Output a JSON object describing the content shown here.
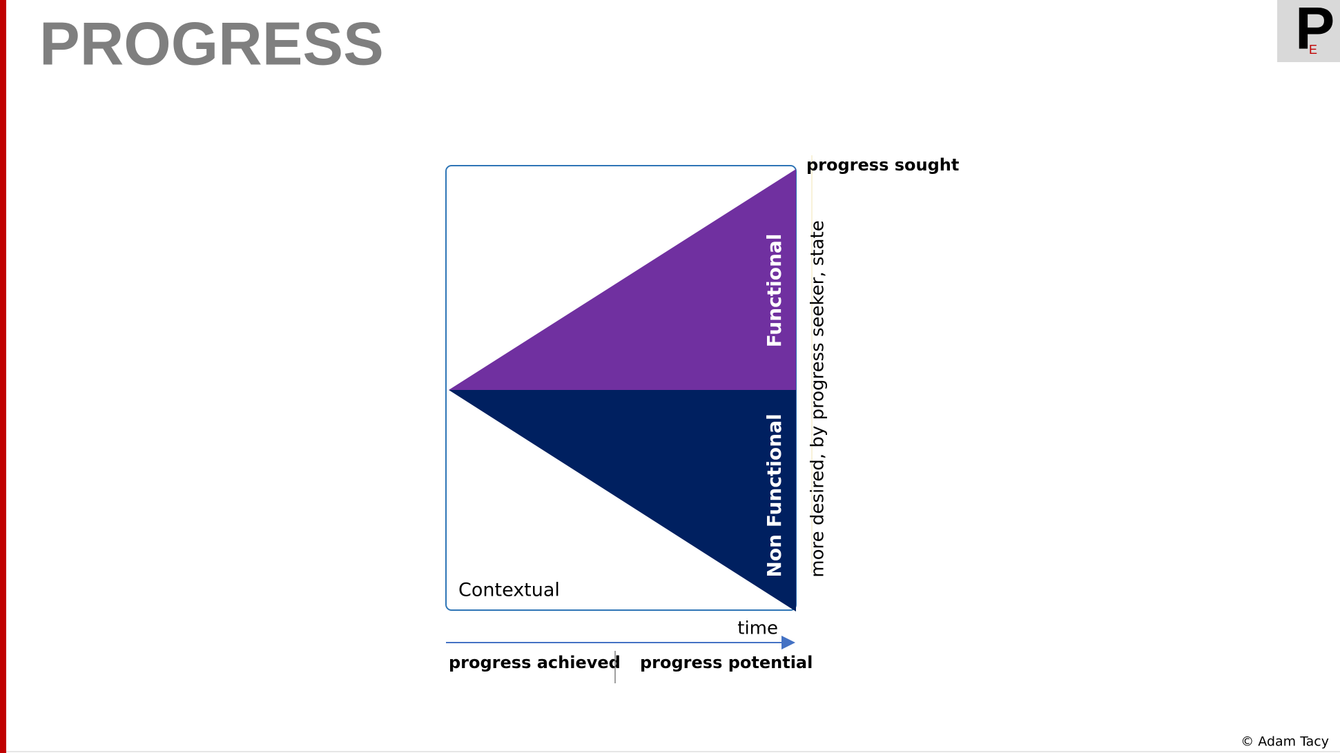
{
  "header": {
    "title": "PROGRESS"
  },
  "logo": {
    "letter": "P",
    "sub": "E"
  },
  "diagram": {
    "top_label": "progress sought",
    "upper_region": "Functional",
    "lower_region": "Non Functional",
    "corner_label": "Contextual",
    "side_label": "more desired, by progress seeker, state",
    "axis_label": "time",
    "left_label": "progress achieved",
    "right_label": "progress potential"
  },
  "footer": {
    "copyright": "© Adam Tacy"
  }
}
